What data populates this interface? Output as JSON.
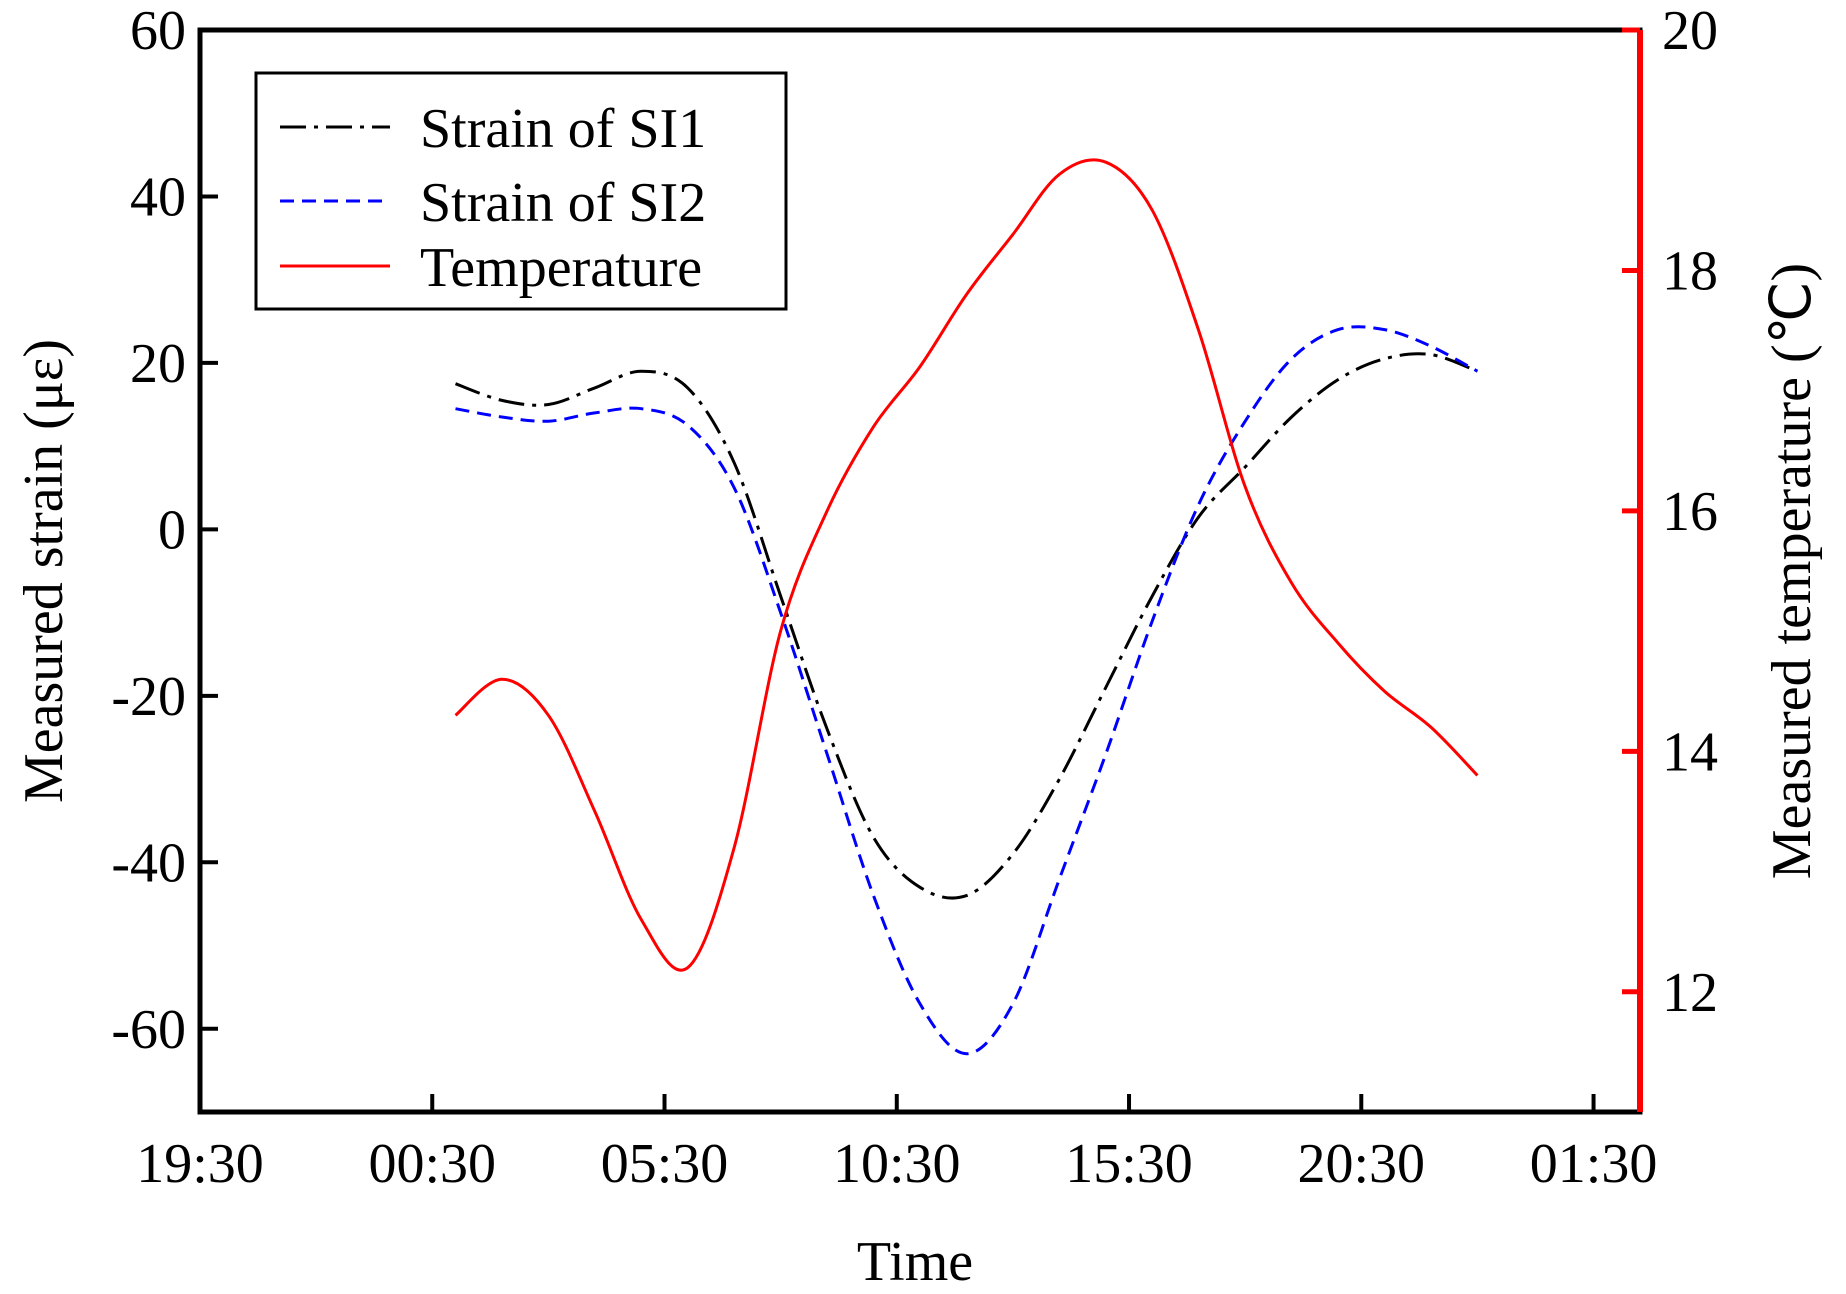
{
  "chart_data": {
    "type": "line",
    "title": "",
    "xlabel": "Time",
    "ylabel": "Measured strain (με)",
    "y2label": "Measured temperature (℃)",
    "x_ticks": [
      {
        "value": -5,
        "label": "19:30"
      },
      {
        "value": 0,
        "label": "00:30"
      },
      {
        "value": 5,
        "label": "05:30"
      },
      {
        "value": 10,
        "label": "10:30"
      },
      {
        "value": 15,
        "label": "15:30"
      },
      {
        "value": 20,
        "label": "20:30"
      },
      {
        "value": 25,
        "label": "01:30"
      }
    ],
    "xlim": [
      -5,
      26
    ],
    "ylim": [
      -70,
      60
    ],
    "y_ticks": [
      -60,
      -40,
      -20,
      0,
      20,
      40,
      60
    ],
    "y2lim": [
      11,
      20
    ],
    "y2_ticks": [
      12,
      14,
      16,
      18,
      20
    ],
    "legend_position": "top-left",
    "colors": {
      "axis_right": "#ff0000"
    },
    "series": [
      {
        "name": "Strain of SI1",
        "axis": "left",
        "color": "#000000",
        "style": "dashdot",
        "x": [
          0.5,
          1.5,
          2.5,
          3.5,
          4.5,
          5.5,
          6.5,
          7.5,
          8.5,
          9.5,
          10.5,
          11.5,
          12.5,
          13.5,
          14.5,
          15.5,
          16.5,
          17.5,
          18.5,
          19.5,
          20.5,
          21.5,
          22.5
        ],
        "values": [
          17.5,
          15.5,
          15.0,
          17.0,
          19.0,
          17.0,
          8.0,
          -8.0,
          -24.0,
          -37.0,
          -43.0,
          -44.0,
          -39.0,
          -30.0,
          -19.0,
          -8.0,
          1.5,
          7.5,
          13.5,
          18.0,
          20.5,
          21.0,
          19.0
        ]
      },
      {
        "name": "Strain of SI2",
        "axis": "left",
        "color": "#0000ff",
        "style": "dashed",
        "x": [
          0.5,
          1.5,
          2.5,
          3.5,
          4.5,
          5.5,
          6.5,
          7.5,
          8.5,
          9.5,
          10.5,
          11.5,
          12.5,
          13.5,
          14.5,
          15.5,
          16.5,
          17.5,
          18.5,
          19.5,
          20.5,
          21.5,
          22.5
        ],
        "values": [
          14.5,
          13.5,
          13.0,
          14.0,
          14.5,
          12.5,
          5.0,
          -10.0,
          -27.0,
          -44.0,
          -57.0,
          -63.0,
          -57.0,
          -42.0,
          -27.0,
          -11.0,
          3.0,
          13.0,
          20.5,
          24.0,
          24.0,
          22.0,
          19.0
        ]
      },
      {
        "name": "Temperature",
        "axis": "right",
        "color": "#ff0000",
        "style": "solid",
        "x": [
          0.5,
          1.5,
          2.5,
          3.5,
          4.5,
          5.5,
          6.5,
          7.5,
          8.5,
          9.5,
          10.5,
          11.5,
          12.5,
          13.5,
          14.5,
          15.5,
          16.5,
          17.5,
          18.5,
          19.5,
          20.5,
          21.5,
          22.5
        ],
        "values": [
          14.3,
          14.6,
          14.3,
          13.5,
          12.6,
          12.2,
          13.2,
          15.0,
          16.0,
          16.7,
          17.2,
          17.8,
          18.3,
          18.8,
          18.9,
          18.5,
          17.5,
          16.2,
          15.4,
          14.9,
          14.5,
          14.2,
          13.8
        ]
      }
    ]
  }
}
